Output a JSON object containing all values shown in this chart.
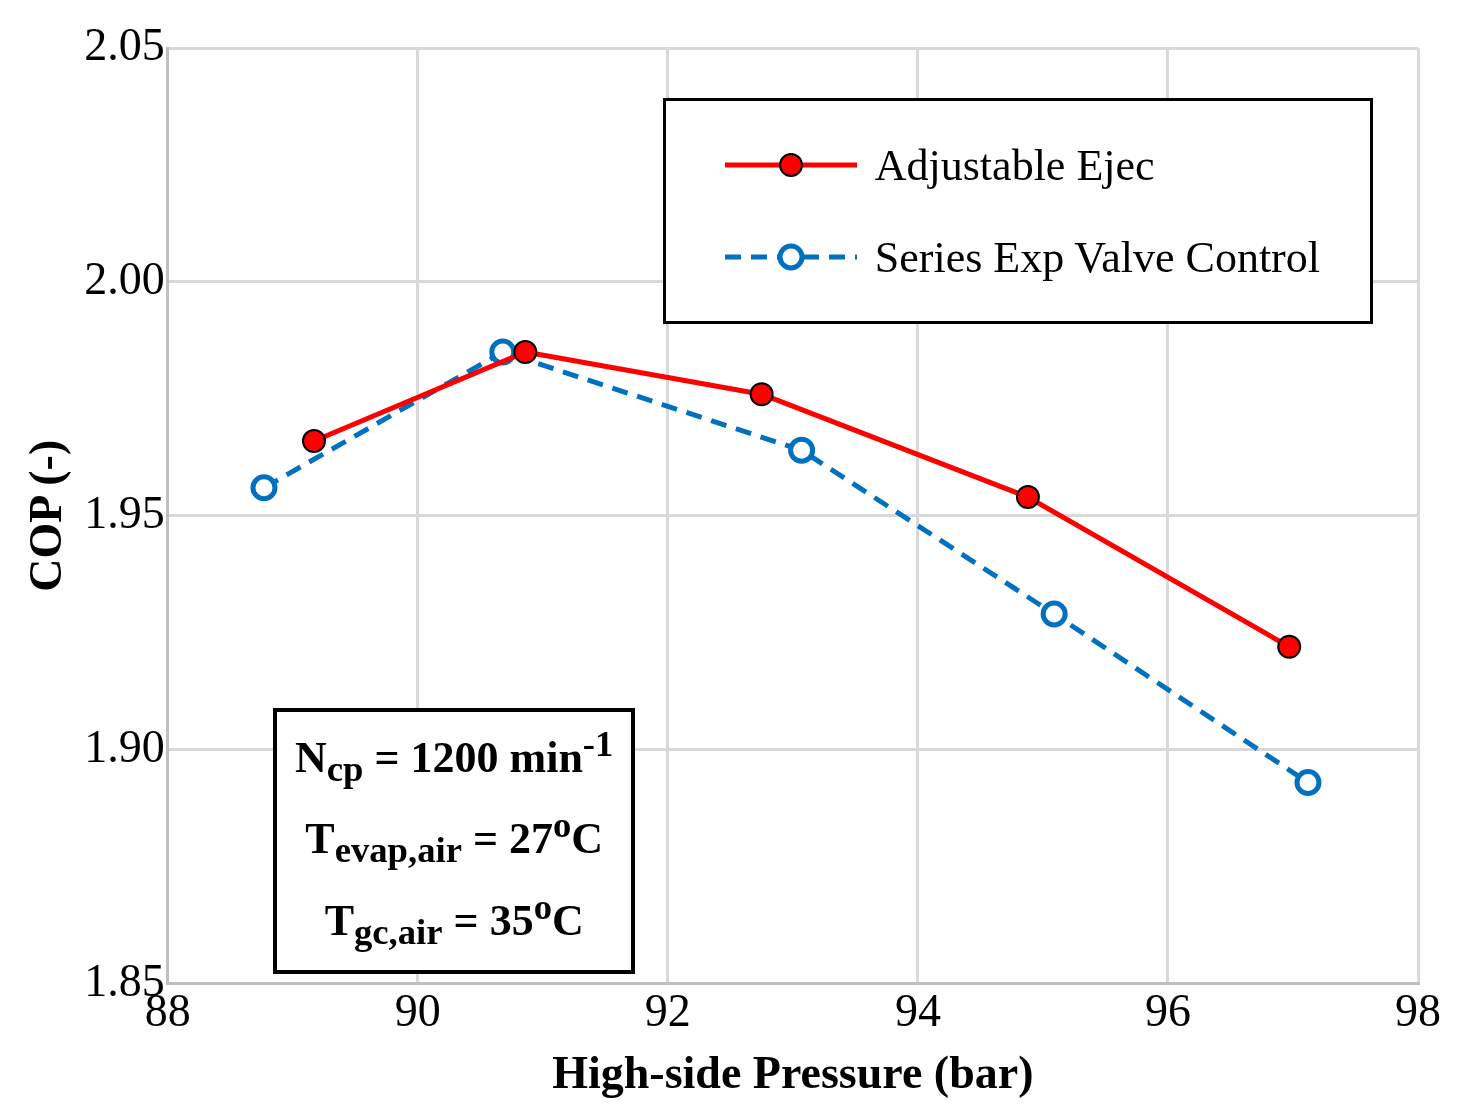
{
  "chart_data": {
    "type": "line",
    "xlabel": "High-side Pressure (bar)",
    "ylabel": "COP (-)",
    "xlim": [
      88,
      98
    ],
    "xticks": [
      88,
      90,
      92,
      94,
      96,
      98
    ],
    "ylim": [
      1.85,
      2.05
    ],
    "yticks": [
      {
        "value": 1.85,
        "label": "1.85"
      },
      {
        "value": 1.9,
        "label": "1.90"
      },
      {
        "value": 1.95,
        "label": "1.95"
      },
      {
        "value": 2,
        "label": "2.00"
      },
      {
        "value": 2.05,
        "label": "2.05"
      }
    ],
    "grid": true,
    "legend": "top right",
    "series": [
      {
        "name": "Adjustable Ejec",
        "color": "#ff0000",
        "x": [
          89.17,
          90.86,
          92.75,
          94.88,
          96.97
        ],
        "values": [
          1.966,
          1.985,
          1.976,
          1.954,
          1.922
        ],
        "marker": "circle",
        "line_style": "solid"
      },
      {
        "name": "Series Exp Valve Control",
        "color": "#0070c0",
        "x": [
          88.77,
          90.68,
          93.07,
          95.09,
          97.12
        ],
        "values": [
          1.956,
          1.985,
          1.964,
          1.929,
          1.893
        ],
        "marker": "circle",
        "line_style": "dashed"
      }
    ],
    "annotations": [
      "N$_{cp}$ = 1200 min$^{-1}$",
      "T$_{evap,air}$ = 27$^{o}$C",
      "T$_{gc,air}$ = 35$^{o}$C"
    ]
  }
}
